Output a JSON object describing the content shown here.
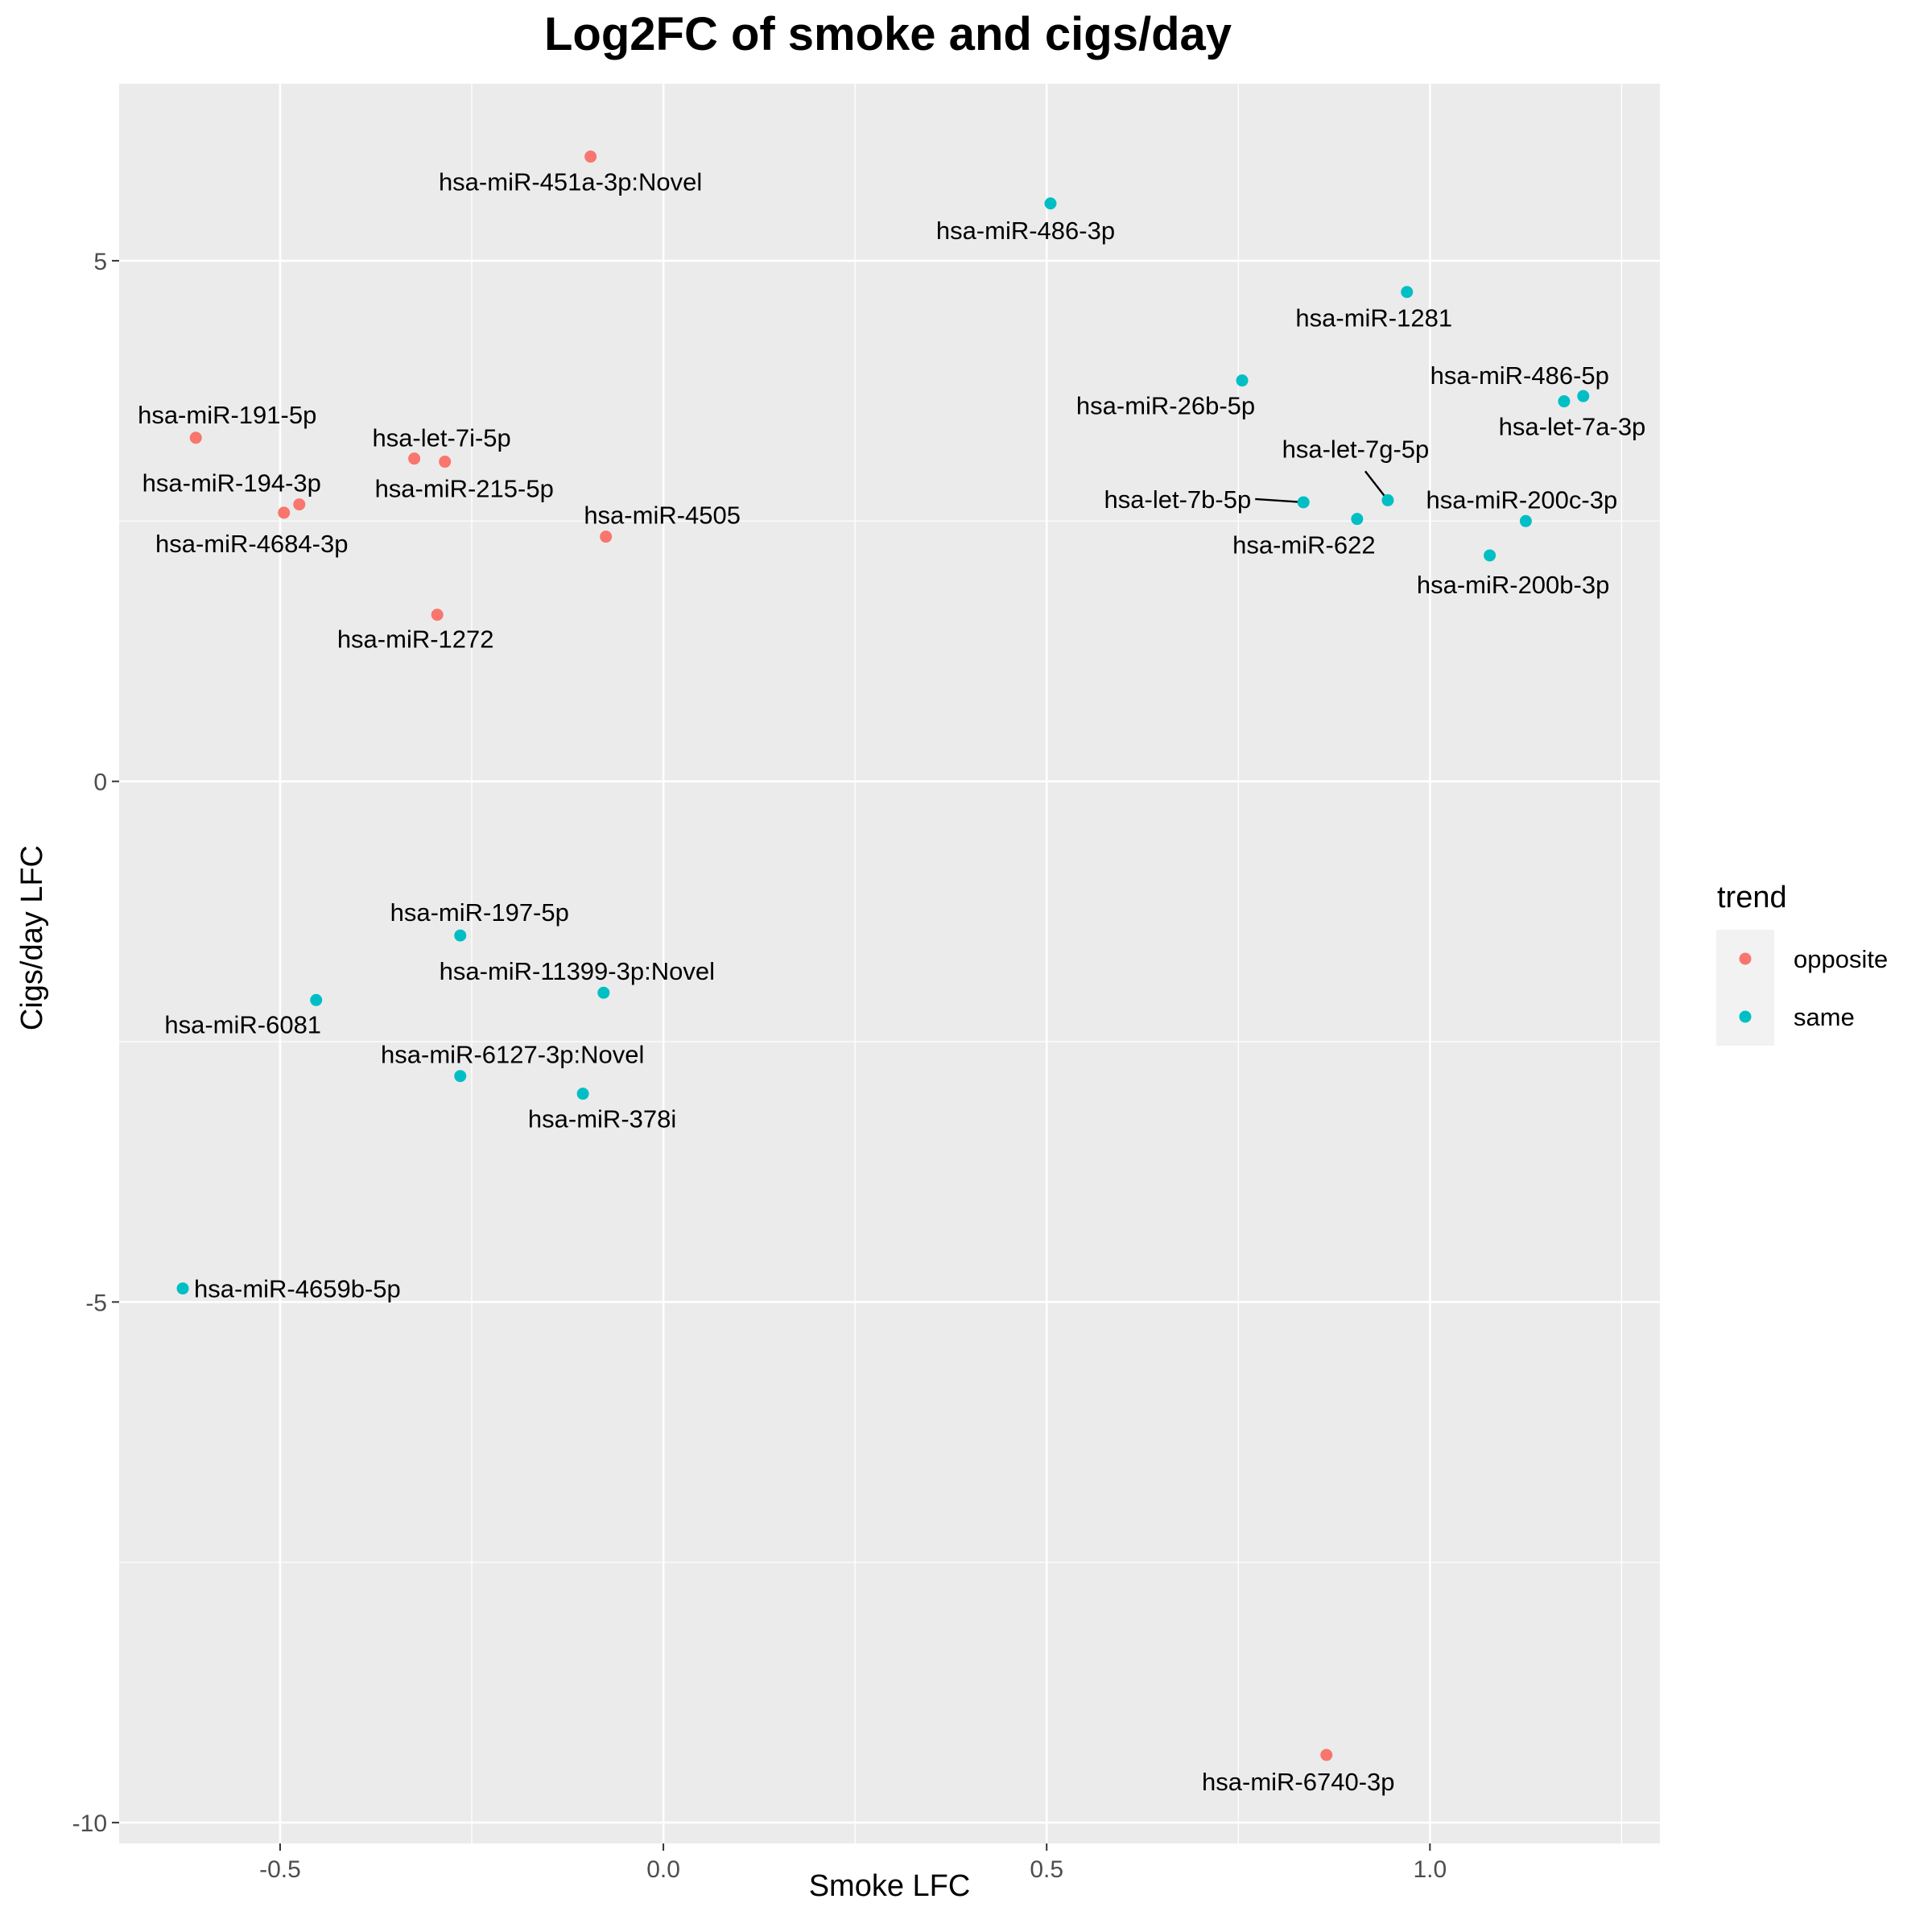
{
  "chart_data": {
    "type": "scatter",
    "title": "Log2FC of smoke and cigs/day",
    "xlabel": "Smoke LFC",
    "ylabel": "Cigs/day LFC",
    "xlim": [
      -0.71,
      1.3
    ],
    "ylim": [
      -10.2,
      6.7
    ],
    "x_ticks": [
      -0.5,
      0.0,
      0.5,
      1.0
    ],
    "x_tick_labels": [
      "-0.5",
      "0.0",
      "0.5",
      "1.0"
    ],
    "y_ticks": [
      -10,
      -5,
      0,
      5
    ],
    "y_tick_labels": [
      "-10",
      "-5",
      "0",
      "5"
    ],
    "grid": true,
    "legend": {
      "title": "trend",
      "position": "right",
      "entries": [
        {
          "name": "opposite",
          "color": "#F8766D"
        },
        {
          "name": "same",
          "color": "#00BFC4"
        }
      ]
    },
    "series": [
      {
        "name": "opposite",
        "color": "#F8766D",
        "points": [
          {
            "label": "hsa-miR-451a-3p:Novel",
            "x": -0.095,
            "y": 6.0
          },
          {
            "label": "hsa-miR-191-5p",
            "x": -0.61,
            "y": 3.3
          },
          {
            "label": "hsa-let-7i-5p",
            "x": -0.325,
            "y": 3.1
          },
          {
            "label": "hsa-miR-215-5p",
            "x": -0.285,
            "y": 3.07
          },
          {
            "label": "hsa-miR-194-3p",
            "x": -0.475,
            "y": 2.66
          },
          {
            "label": "hsa-miR-4684-3p",
            "x": -0.495,
            "y": 2.58
          },
          {
            "label": "hsa-miR-4505",
            "x": -0.075,
            "y": 2.35
          },
          {
            "label": "hsa-miR-1272",
            "x": -0.295,
            "y": 1.6
          },
          {
            "label": "hsa-miR-6740-3p",
            "x": 0.865,
            "y": -9.35
          }
        ]
      },
      {
        "name": "same",
        "color": "#00BFC4",
        "points": [
          {
            "label": "hsa-miR-486-3p",
            "x": 0.505,
            "y": 5.55
          },
          {
            "label": "hsa-miR-1281",
            "x": 0.97,
            "y": 4.7
          },
          {
            "label": "hsa-miR-26b-5p",
            "x": 0.755,
            "y": 3.85
          },
          {
            "label": "hsa-miR-486-5p",
            "x": 1.2,
            "y": 3.7
          },
          {
            "label": "hsa-let-7a-3p",
            "x": 1.175,
            "y": 3.65
          },
          {
            "label": "hsa-let-7g-5p",
            "x": 0.945,
            "y": 2.7
          },
          {
            "label": "hsa-let-7b-5p",
            "x": 0.835,
            "y": 2.68
          },
          {
            "label": "hsa-miR-622",
            "x": 0.905,
            "y": 2.52
          },
          {
            "label": "hsa-miR-200c-3p",
            "x": 1.125,
            "y": 2.5
          },
          {
            "label": "hsa-miR-200b-3p",
            "x": 1.078,
            "y": 2.17
          },
          {
            "label": "hsa-miR-197-5p",
            "x": -0.265,
            "y": -1.48
          },
          {
            "label": "hsa-miR-11399-3p:Novel",
            "x": -0.078,
            "y": -2.03
          },
          {
            "label": "hsa-miR-6081",
            "x": -0.453,
            "y": -2.1
          },
          {
            "label": "hsa-miR-6127-3p:Novel",
            "x": -0.265,
            "y": -2.83
          },
          {
            "label": "hsa-miR-378i",
            "x": -0.105,
            "y": -3.0
          },
          {
            "label": "hsa-miR-4659b-5p",
            "x": -0.627,
            "y": -4.87
          }
        ]
      }
    ]
  }
}
